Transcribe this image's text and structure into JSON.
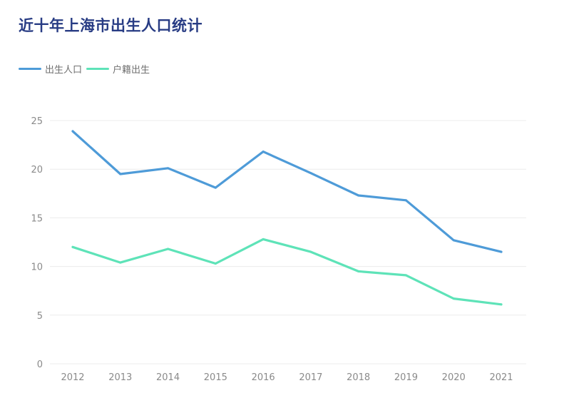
{
  "title": "近十年上海市出生人口统计",
  "colors": {
    "series_1": "#4e9bd8",
    "series_2": "#5ee3b8",
    "title": "#283c84",
    "grid": "#ececec"
  },
  "chart_data": {
    "type": "line",
    "title": "近十年上海市出生人口统计",
    "xlabel": "",
    "ylabel": "",
    "x": [
      "2012",
      "2013",
      "2014",
      "2015",
      "2016",
      "2017",
      "2018",
      "2019",
      "2020",
      "2021"
    ],
    "ylim": [
      0,
      25
    ],
    "yticks": [
      "0",
      "5",
      "10",
      "15",
      "20",
      "25"
    ],
    "grid": true,
    "legend_position": "top-left",
    "series": [
      {
        "name": "出生人口",
        "color": "#4e9bd8",
        "values": [
          23.9,
          19.5,
          20.1,
          18.1,
          21.8,
          19.6,
          17.3,
          16.8,
          12.7,
          11.5
        ]
      },
      {
        "name": "户籍出生",
        "color": "#5ee3b8",
        "values": [
          12.0,
          10.4,
          11.8,
          10.3,
          12.8,
          11.5,
          9.5,
          9.1,
          6.7,
          6.1
        ]
      }
    ]
  }
}
